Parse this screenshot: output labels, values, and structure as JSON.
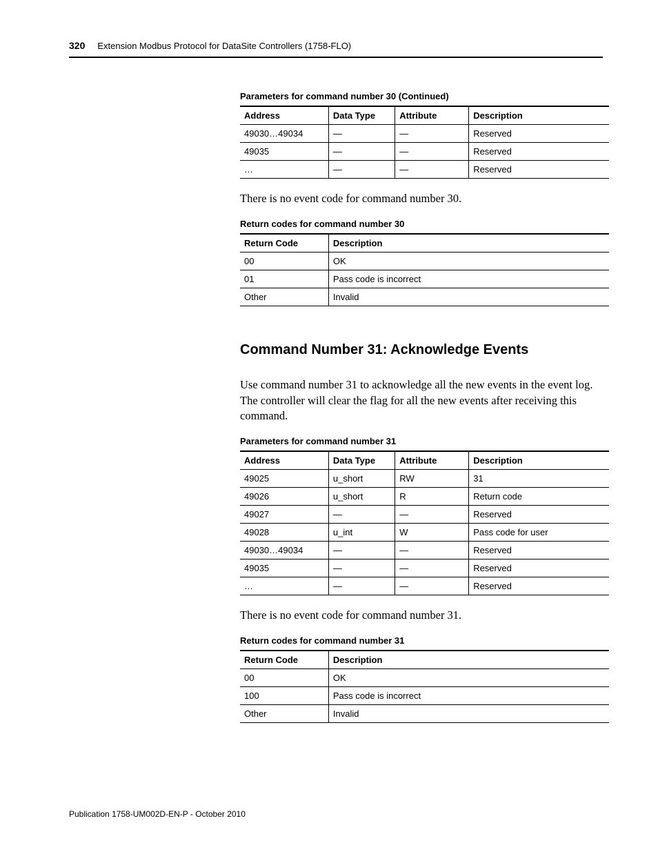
{
  "header": {
    "page_number": "320",
    "running_title": "Extension Modbus Protocol for DataSite Controllers (1758-FLO)"
  },
  "table1": {
    "caption": "Parameters for command number 30 (Continued)",
    "columns": [
      "Address",
      "Data Type",
      "Attribute",
      "Description"
    ],
    "rows": [
      [
        "49030…49034",
        "—",
        "—",
        "Reserved"
      ],
      [
        "49035",
        "—",
        "—",
        "Reserved"
      ],
      [
        "…",
        "—",
        "—",
        "Reserved"
      ]
    ]
  },
  "note1": "There is no event code for command number 30.",
  "table2": {
    "caption": "Return codes for command number 30",
    "columns": [
      "Return Code",
      "Description"
    ],
    "rows": [
      [
        "00",
        "OK"
      ],
      [
        "01",
        "Pass code is incorrect"
      ],
      [
        "Other",
        "Invalid"
      ]
    ]
  },
  "section_heading": "Command Number 31: Acknowledge Events",
  "section_body": "Use command number 31 to acknowledge all the new events in the event log. The controller will clear the flag for all the new events after receiving this command.",
  "table3": {
    "caption": "Parameters for command number 31",
    "columns": [
      "Address",
      "Data Type",
      "Attribute",
      "Description"
    ],
    "rows": [
      [
        "49025",
        "u_short",
        "RW",
        "31"
      ],
      [
        "49026",
        "u_short",
        "R",
        "Return code"
      ],
      [
        "49027",
        "—",
        "—",
        "Reserved"
      ],
      [
        "49028",
        "u_int",
        "W",
        "Pass code for user"
      ],
      [
        "49030…49034",
        "—",
        "—",
        "Reserved"
      ],
      [
        "49035",
        "—",
        "—",
        "Reserved"
      ],
      [
        "…",
        "—",
        "—",
        "Reserved"
      ]
    ]
  },
  "note2": "There is no event code for command number 31.",
  "table4": {
    "caption": "Return codes for command number 31",
    "columns": [
      "Return Code",
      "Description"
    ],
    "rows": [
      [
        "00",
        "OK"
      ],
      [
        "100",
        "Pass code is incorrect"
      ],
      [
        "Other",
        "Invalid"
      ]
    ]
  },
  "footer": "Publication 1758-UM002D-EN-P - October 2010"
}
